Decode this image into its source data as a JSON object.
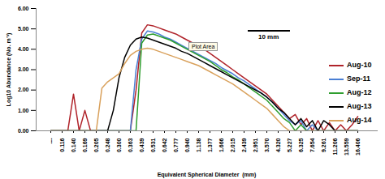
{
  "chart_data": {
    "type": "line",
    "x_label": "Equivalent Spherical Diameter  (mm)",
    "y_label": "Log10 Abundance (No. m⁻³)",
    "categories": [
      "---",
      null,
      "0.116",
      null,
      "0.140",
      null,
      "0.169",
      null,
      "0.205",
      null,
      "0.248",
      null,
      "0.300",
      null,
      "0.363",
      null,
      "0.439",
      null,
      "0.531",
      null,
      "0.642",
      null,
      "0.777",
      null,
      "0.940",
      null,
      "1.138",
      null,
      "1.377",
      null,
      "1.666",
      null,
      "2.015",
      null,
      "2.439",
      null,
      "2.951",
      null,
      "3.570",
      null,
      "4.320",
      null,
      "5.227",
      null,
      "6.325",
      null,
      "7.654",
      null,
      "9.261",
      null,
      "11.206",
      null,
      "13.559",
      null,
      "16.406",
      null
    ],
    "series": [
      {
        "name": "Aug-10",
        "color": "#b0232a",
        "values": [
          0,
          0,
          0,
          0,
          1.8,
          0,
          1.0,
          0,
          0,
          0,
          0,
          0,
          0,
          0,
          0,
          2.0,
          4.8,
          5.2,
          5.15,
          5.05,
          4.95,
          4.85,
          4.75,
          4.6,
          4.45,
          4.3,
          4.15,
          4.0,
          3.8,
          3.6,
          3.4,
          3.2,
          3.0,
          2.8,
          2.6,
          2.4,
          2.2,
          2.0,
          1.8,
          1.5,
          1.2,
          0.9,
          0.6,
          0.8,
          0.3,
          0.6,
          0,
          0.5,
          0,
          0.4,
          0,
          0.3,
          0,
          0.3,
          0.7,
          null
        ]
      },
      {
        "name": "Sep-11",
        "color": "#4a7fd4",
        "values": [
          0,
          0,
          0,
          0,
          0,
          0,
          0,
          0,
          0,
          0,
          0,
          0,
          0,
          0,
          0,
          3.0,
          4.5,
          4.9,
          4.85,
          4.75,
          4.6,
          4.5,
          4.35,
          4.2,
          4.05,
          3.9,
          3.75,
          3.6,
          3.45,
          3.3,
          3.1,
          2.95,
          2.8,
          2.6,
          2.45,
          2.25,
          2.05,
          1.85,
          1.65,
          1.4,
          1.1,
          0.8,
          0.5,
          0.3,
          0.5,
          0,
          0.3,
          0,
          0,
          0,
          0,
          0,
          0,
          0,
          0,
          null
        ]
      },
      {
        "name": "Aug-12",
        "color": "#2e9e2e",
        "values": [
          0,
          0,
          0,
          0,
          0,
          0,
          0,
          0,
          0,
          0,
          0,
          0,
          0,
          0,
          0,
          0,
          4.3,
          4.7,
          4.75,
          4.65,
          4.55,
          4.45,
          4.3,
          4.15,
          4.0,
          3.85,
          3.7,
          3.55,
          3.4,
          3.2,
          3.0,
          2.85,
          2.65,
          2.5,
          2.3,
          2.1,
          1.9,
          1.7,
          1.5,
          1.2,
          0.9,
          0.6,
          0.4,
          0,
          0.3,
          0,
          0,
          0,
          0,
          0,
          0,
          0,
          0,
          0,
          0,
          null
        ]
      },
      {
        "name": "Aug-13",
        "color": "#000000",
        "values": [
          0,
          0,
          0,
          0,
          0,
          0,
          0,
          0,
          0,
          0,
          0,
          1.0,
          2.6,
          3.6,
          4.2,
          4.5,
          4.6,
          4.55,
          4.45,
          4.35,
          4.25,
          4.15,
          4.05,
          3.9,
          3.8,
          3.65,
          3.5,
          3.35,
          3.2,
          3.05,
          2.9,
          2.75,
          2.6,
          2.45,
          2.3,
          2.15,
          2.0,
          1.85,
          1.65,
          1.4,
          1.1,
          0.9,
          0.6,
          0.3,
          0.6,
          0.2,
          0.5,
          0,
          0.5,
          0.3,
          0,
          0,
          0,
          0,
          0,
          null
        ]
      },
      {
        "name": "Aug-14",
        "color": "#d9a15c",
        "values": [
          0,
          0,
          0,
          0,
          0,
          0,
          0,
          0,
          0,
          2.1,
          2.4,
          2.6,
          2.8,
          3.3,
          3.7,
          3.9,
          4.0,
          4.05,
          4.0,
          3.9,
          3.8,
          3.7,
          3.6,
          3.5,
          3.4,
          3.3,
          3.2,
          3.05,
          2.9,
          2.75,
          2.6,
          2.45,
          2.3,
          2.1,
          1.9,
          1.7,
          1.5,
          1.3,
          1.1,
          0.8,
          0.5,
          0.2,
          0,
          0,
          0,
          0,
          0,
          0,
          0,
          0,
          0,
          0,
          0,
          0,
          0,
          null
        ]
      }
    ],
    "ylim": [
      0,
      6
    ],
    "yticks": [
      {
        "value": 0,
        "label": "0.00"
      },
      {
        "value": 1,
        "label": "1.00"
      },
      {
        "value": 2,
        "label": "2.00"
      },
      {
        "value": 3,
        "label": "3.00"
      },
      {
        "value": 4,
        "label": "4.00"
      },
      {
        "value": 5,
        "label": "5.00"
      },
      {
        "value": 6,
        "label": "6.00"
      }
    ],
    "grid": false,
    "legend": "right",
    "annotations": [
      "Plot Area",
      "10 mm"
    ]
  }
}
